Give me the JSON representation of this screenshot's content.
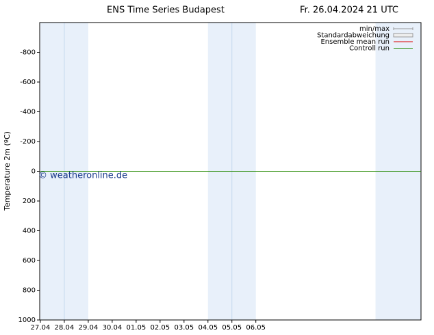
{
  "chart_data": {
    "type": "line",
    "title": "ENS Time Series Budapest",
    "subtitle": "Fr. 26.04.2024 21 UTC",
    "y_label": "Temperature 2m (ºC)",
    "watermark": "© weatheronline.de",
    "xlim": [
      0,
      15.9
    ],
    "xticks": [
      {
        "value": 0,
        "label": "27.04"
      },
      {
        "value": 1,
        "label": "28.04"
      },
      {
        "value": 2,
        "label": "29.04"
      },
      {
        "value": 3,
        "label": "30.04"
      },
      {
        "value": 4,
        "label": "01.05"
      },
      {
        "value": 5,
        "label": "02.05"
      },
      {
        "value": 6,
        "label": "03.05"
      },
      {
        "value": 7,
        "label": "04.05"
      },
      {
        "value": 8,
        "label": "05.05"
      },
      {
        "value": 9,
        "label": "06.05"
      }
    ],
    "ylim": [
      -1000,
      1000
    ],
    "y_inverted": true,
    "yticks": [
      -800,
      -600,
      -400,
      -200,
      0,
      200,
      400,
      600,
      800,
      1000
    ],
    "bands": [
      [
        0,
        2
      ],
      [
        7,
        9
      ],
      [
        14,
        15.9
      ]
    ],
    "band_color": "#e8f0fa",
    "legend": "upper right",
    "series": [
      {
        "name": "min/max",
        "color": "#999999",
        "x": [],
        "values": []
      },
      {
        "name": "Standardabweichung",
        "color": "#999999",
        "x": [],
        "values": []
      },
      {
        "name": "Ensemble mean run",
        "color": "#dd0000",
        "x": [
          0,
          15.9
        ],
        "values": [
          0,
          0
        ]
      },
      {
        "name": "Controll run",
        "color": "#228800",
        "x": [
          0,
          15.9
        ],
        "values": [
          0,
          0
        ]
      }
    ]
  }
}
